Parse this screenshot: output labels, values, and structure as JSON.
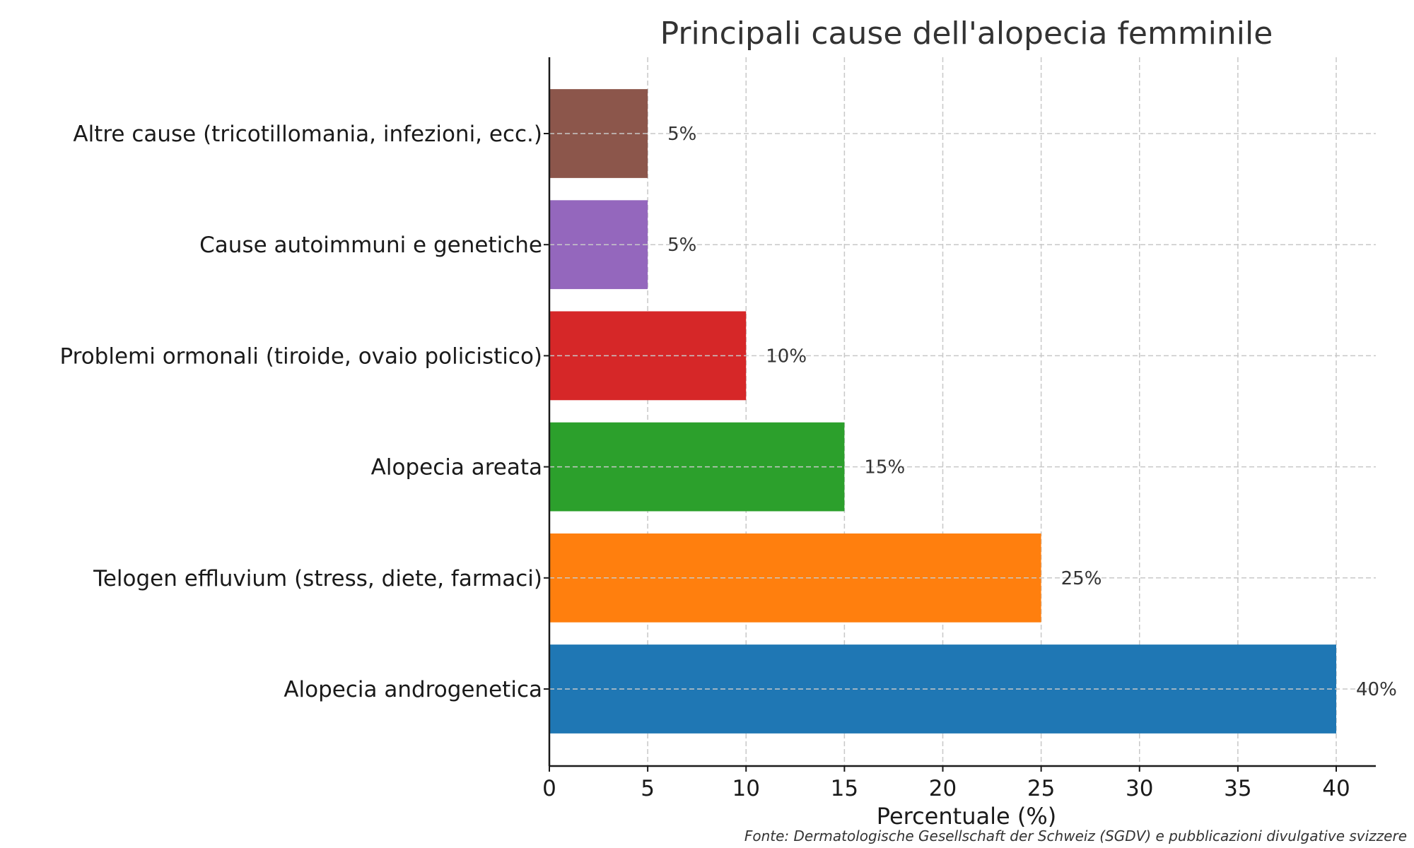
{
  "chart_data": {
    "type": "bar",
    "orientation": "horizontal",
    "title": "Principali cause dell'alopecia femminile",
    "xlabel": "Percentuale (%)",
    "ylabel": "",
    "categories": [
      "Alopecia androgenetica",
      "Telogen effluvium (stress, diete, farmaci)",
      "Alopecia areata",
      "Problemi ormonali (tiroide, ovaio policistico)",
      "Cause autoimmuni e genetiche",
      "Altre cause (tricotillomania, infezioni, ecc.)"
    ],
    "values": [
      40,
      25,
      15,
      10,
      5,
      5
    ],
    "value_labels": [
      "40%",
      "25%",
      "15%",
      "10%",
      "5%",
      "5%"
    ],
    "colors": [
      "#1f77b4",
      "#ff7f0e",
      "#2ca02c",
      "#d62728",
      "#9467bd",
      "#8c564b"
    ],
    "xlim": [
      0,
      42
    ],
    "xticks": [
      0,
      5,
      10,
      15,
      20,
      25,
      30,
      35,
      40
    ],
    "xtick_labels": [
      "0",
      "5",
      "10",
      "15",
      "20",
      "25",
      "30",
      "35",
      "40"
    ],
    "grid": true,
    "grid_style": "dashed",
    "legend": "none",
    "source_note": "Fonte: Dermatologische Gesellschaft der Schweiz (SGDV) e pubblicazioni divulgative svizzere"
  }
}
